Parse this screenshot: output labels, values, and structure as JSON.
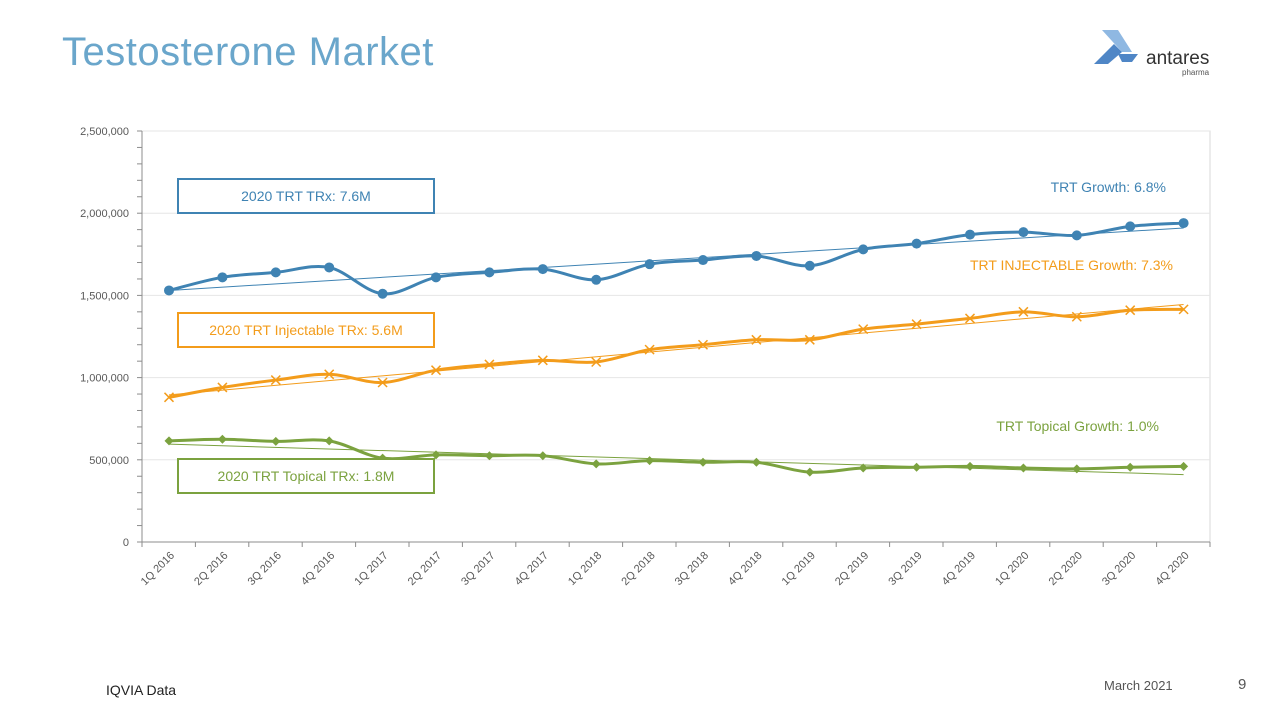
{
  "slide": {
    "title": "Testosterone Market",
    "source": "IQVIA Data",
    "date": "March 2021",
    "page_number": "9"
  },
  "logo": {
    "name": "antares",
    "sub": "pharma",
    "colors": [
      "#4f86c6",
      "#8fb8e2"
    ]
  },
  "chart_data": {
    "type": "line",
    "title": "",
    "xlabel": "",
    "ylabel": "",
    "ylim": [
      0,
      2500000
    ],
    "yticks": [
      0,
      500000,
      1000000,
      1500000,
      2000000,
      2500000
    ],
    "ytick_labels": [
      "0",
      "500,000",
      "1,000,000",
      "1,500,000",
      "2,000,000",
      "2,500,000"
    ],
    "grid": true,
    "categories": [
      "1Q 2016",
      "2Q 2016",
      "3Q 2016",
      "4Q 2016",
      "1Q 2017",
      "2Q 2017",
      "3Q 2017",
      "4Q 2017",
      "1Q 2018",
      "2Q 2018",
      "3Q 2018",
      "4Q 2018",
      "1Q 2019",
      "2Q 2019",
      "3Q 2019",
      "4Q 2019",
      "1Q 2020",
      "2Q 2020",
      "3Q 2020",
      "4Q 2020"
    ],
    "series": [
      {
        "key": "trt",
        "color": "#3f83b3",
        "marker": "circle",
        "values": [
          1530000,
          1610000,
          1640000,
          1670000,
          1510000,
          1610000,
          1640000,
          1660000,
          1595000,
          1690000,
          1715000,
          1740000,
          1680000,
          1780000,
          1815000,
          1870000,
          1885000,
          1865000,
          1920000,
          1940000
        ],
        "trend": [
          1530000,
          1910000
        ]
      },
      {
        "key": "injectable",
        "color": "#f39c1b",
        "marker": "x",
        "values": [
          880000,
          940000,
          985000,
          1020000,
          970000,
          1045000,
          1080000,
          1105000,
          1095000,
          1170000,
          1200000,
          1230000,
          1230000,
          1295000,
          1325000,
          1360000,
          1400000,
          1370000,
          1410000,
          1415000
        ],
        "trend": [
          895000,
          1445000
        ]
      },
      {
        "key": "topical",
        "color": "#7ba23f",
        "marker": "diamond",
        "values": [
          615000,
          625000,
          612000,
          615000,
          510000,
          530000,
          525000,
          525000,
          475000,
          495000,
          485000,
          485000,
          425000,
          450000,
          455000,
          460000,
          450000,
          445000,
          455000,
          460000
        ],
        "trend": [
          595000,
          410000
        ]
      }
    ],
    "annotations": {
      "trt_growth": "TRT Growth: 6.8%",
      "injectable_growth": "TRT INJECTABLE Growth: 7.3%",
      "topical_growth": "TRT Topical Growth: 1.0%",
      "trt_total": "2020 TRT TRx: 7.6M",
      "injectable_total": "2020 TRT Injectable TRx: 5.6M",
      "topical_total": "2020 TRT Topical TRx: 1.8M"
    }
  }
}
